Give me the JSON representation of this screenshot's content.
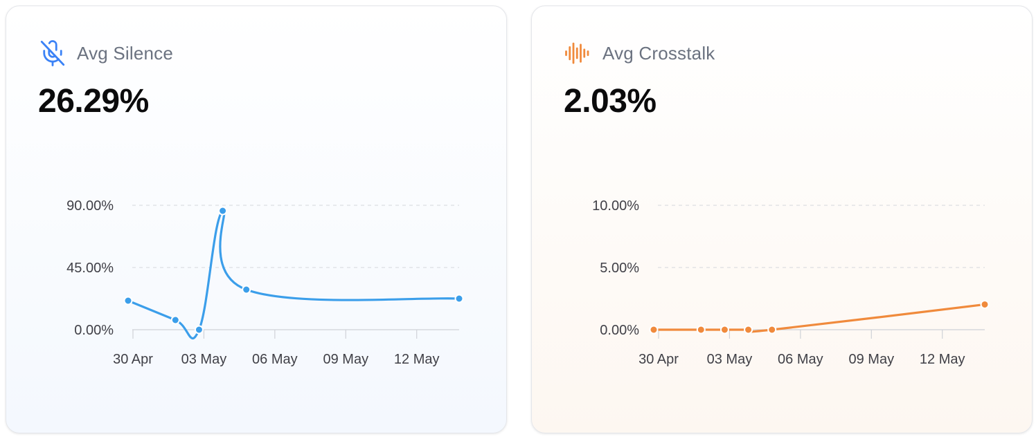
{
  "cards": [
    {
      "label": "Avg Silence",
      "value": "26.29%",
      "icon": "mic-off-icon",
      "color": "#3b9eea"
    },
    {
      "label": "Avg Crosstalk",
      "value": "2.03%",
      "icon": "audio-waveform-icon",
      "color": "#f08a3c"
    }
  ],
  "chart_data": [
    {
      "type": "line",
      "x": [
        "2025-04-30",
        "2025-05-02",
        "2025-05-03",
        "2025-05-04",
        "2025-05-05",
        "2025-05-14"
      ],
      "series": [
        {
          "values": [
            21,
            7,
            0,
            86,
            29,
            22.5
          ]
        }
      ],
      "x_ticks": [
        "30 Apr",
        "03 May",
        "06 May",
        "09 May",
        "12 May"
      ],
      "y_ticks": [
        "0.00%",
        "45.00%",
        "90.00%"
      ],
      "ylim": [
        0,
        90
      ],
      "grid": "horizontal dashed",
      "color": "#3b9eea"
    },
    {
      "type": "line",
      "x": [
        "2025-04-30",
        "2025-05-02",
        "2025-05-03",
        "2025-05-04",
        "2025-05-05",
        "2025-05-14"
      ],
      "series": [
        {
          "values": [
            0,
            0,
            0,
            0,
            0,
            2.03
          ]
        }
      ],
      "x_ticks": [
        "30 Apr",
        "03 May",
        "06 May",
        "09 May",
        "12 May"
      ],
      "y_ticks": [
        "0.00%",
        "5.00%",
        "10.00%"
      ],
      "ylim": [
        0,
        10
      ],
      "grid": "horizontal dashed",
      "color": "#f08a3c"
    }
  ]
}
